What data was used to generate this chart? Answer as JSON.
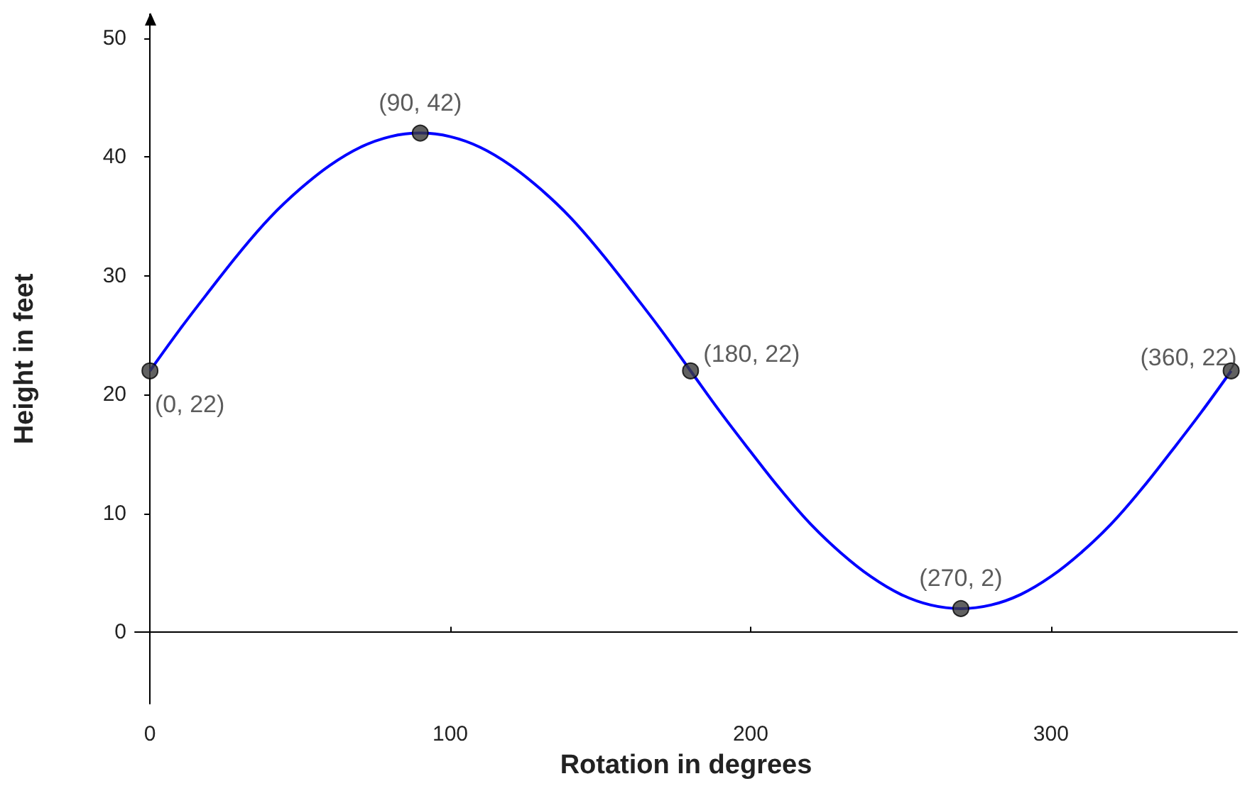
{
  "chart_data": {
    "type": "line",
    "xlabel": "Rotation in degrees",
    "ylabel": "Height in feet",
    "xlim": [
      -5,
      362
    ],
    "ylim": [
      -6,
      52
    ],
    "xticks": [
      0,
      100,
      200,
      300
    ],
    "yticks": [
      0,
      10,
      20,
      30,
      40,
      50
    ],
    "series": [
      {
        "color": "#0000ff",
        "marker": "none",
        "x": [
          0,
          10,
          20,
          30,
          40,
          50,
          60,
          70,
          80,
          90,
          100,
          110,
          120,
          130,
          140,
          150,
          160,
          170,
          180,
          190,
          200,
          210,
          220,
          230,
          240,
          250,
          260,
          270,
          280,
          290,
          300,
          310,
          320,
          330,
          340,
          350,
          360
        ],
        "values": [
          22,
          25.5,
          28.8,
          32,
          34.9,
          37.3,
          39.3,
          40.8,
          41.7,
          42,
          41.7,
          40.8,
          39.3,
          37.3,
          34.9,
          32,
          28.8,
          25.5,
          22,
          18.5,
          15.2,
          12,
          9.1,
          6.7,
          4.7,
          3.2,
          2.3,
          2,
          2.3,
          3.2,
          4.7,
          6.7,
          9.1,
          12,
          15.2,
          18.5,
          22
        ]
      },
      {
        "type": "scatter",
        "color": "#3a3a3a",
        "marker": "circle",
        "x": [
          0,
          90,
          180,
          270,
          360
        ],
        "values": [
          22,
          42,
          22,
          2,
          22
        ]
      }
    ],
    "annotations": [
      {
        "text": "(0, 22)",
        "x": 0,
        "y": 22
      },
      {
        "text": "(90, 42)",
        "x": 90,
        "y": 42
      },
      {
        "text": "(180, 22)",
        "x": 180,
        "y": 22
      },
      {
        "text": "(270, 2)",
        "x": 270,
        "y": 2
      },
      {
        "text": "(360, 22)",
        "x": 360,
        "y": 22
      }
    ]
  }
}
